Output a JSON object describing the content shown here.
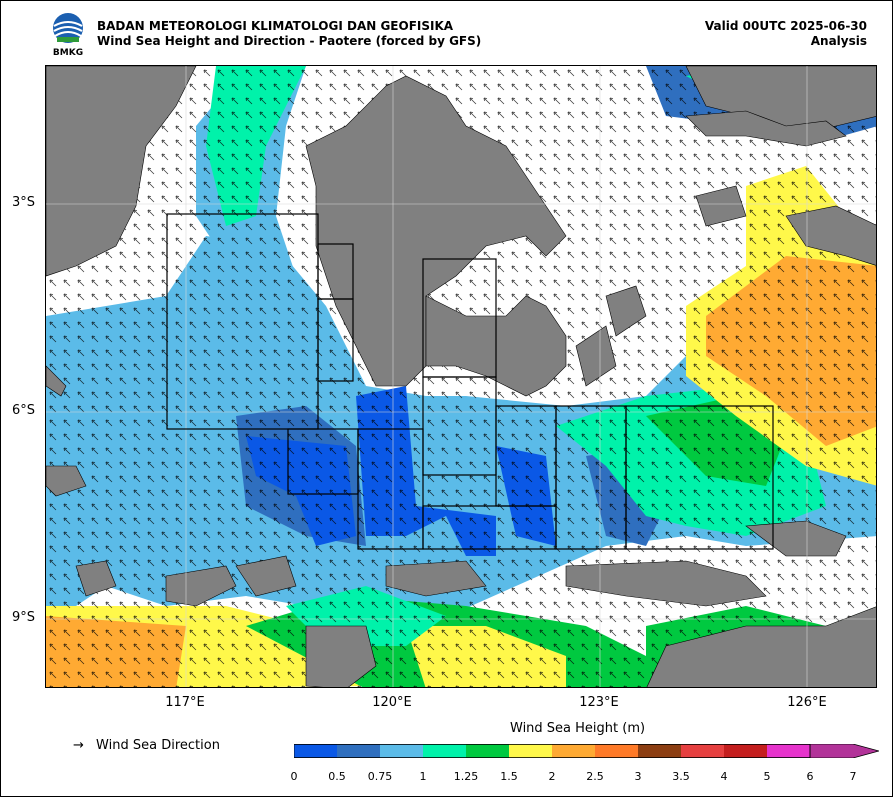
{
  "header": {
    "agency": "BADAN METEOROLOGI KLIMATOLOGI DAN GEOFISIKA",
    "subtitle": "Wind Sea Height and Direction - Paotere (forced by GFS)",
    "valid": "Valid 00UTC 2025-06-30",
    "analysis": "Analysis",
    "logo_text": "BMKG"
  },
  "axes": {
    "lat_labels": [
      "3°S",
      "6°S",
      "9°S"
    ],
    "lon_labels": [
      "117°E",
      "120°E",
      "123°E",
      "126°E"
    ]
  },
  "legend": {
    "arrow": "→",
    "direction_label": "Wind Sea Direction",
    "colorbar_title": "Wind Sea Height (m)",
    "ticks": [
      "0",
      "0.5",
      "0.75",
      "1",
      "1.25",
      "1.5",
      "2",
      "2.5",
      "3",
      "3.5",
      "4",
      "5",
      "6",
      "7"
    ],
    "colors": [
      "#0a58e6",
      "#2f6fbf",
      "#5bbbe8",
      "#00f2aa",
      "#00c940",
      "#fff84a",
      "#ffaa33",
      "#ff7a28",
      "#8c3e12",
      "#e64040",
      "#c41e1e",
      "#e633cc",
      "#b23399"
    ]
  },
  "map_colors": {
    "land": "#808080",
    "water_calm": "#ffffff",
    "grid": "#d8d8d8"
  }
}
